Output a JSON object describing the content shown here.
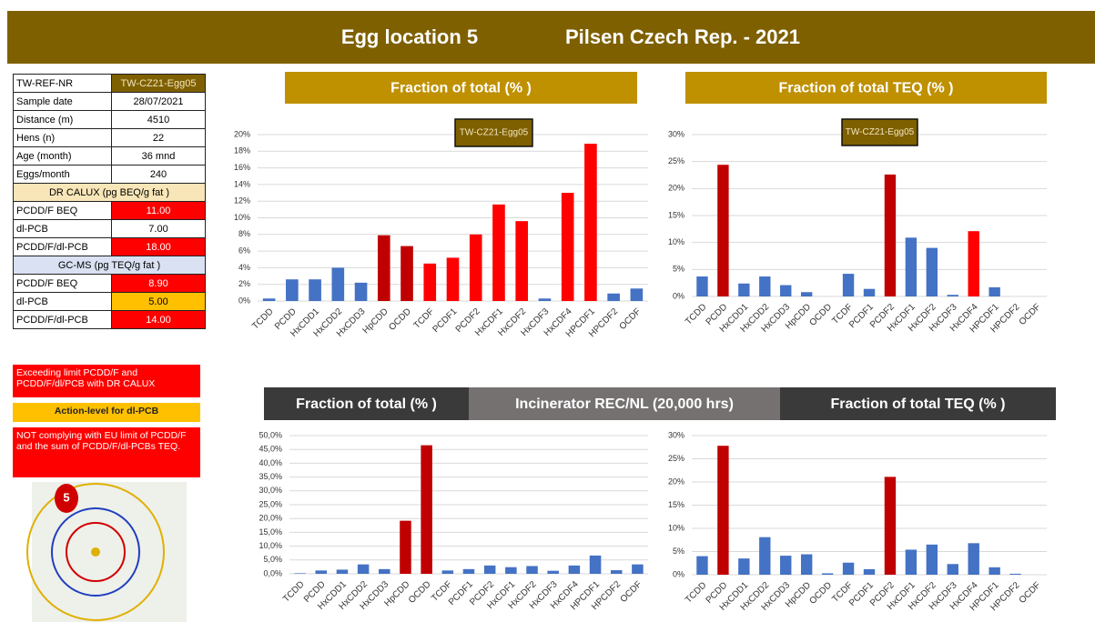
{
  "header": {
    "title": "Egg location 5",
    "subtitle": "Pilsen Czech Rep.  -  2021"
  },
  "table": {
    "rows": [
      [
        "TW-REF-NR",
        "TW-CZ21-Egg05"
      ],
      [
        "Sample date",
        "28/07/2021"
      ],
      [
        "Distance (m)",
        "4510"
      ],
      [
        "Hens (n)",
        "22"
      ],
      [
        "Age (month)",
        "36 mnd"
      ],
      [
        "Eggs/month",
        "240"
      ],
      [
        "DR CALUX  (pg BEQ/g fat )"
      ],
      [
        "PCDD/F BEQ",
        "11.00"
      ],
      [
        "dl-PCB",
        "7.00"
      ],
      [
        "PCDD/F/dl-PCB",
        "18.00"
      ],
      [
        "GC-MS  (pg TEQ/g fat )"
      ],
      [
        "PCDD/F BEQ",
        "8.90"
      ],
      [
        "dl-PCB",
        "5.00"
      ],
      [
        "PCDD/F/dl-PCB",
        "14.00"
      ]
    ]
  },
  "notes": [
    "Exceeding limit PCDD/F and PCDD/F/dl/PCB with DR CALUX",
    "Action-level for dl-PCB",
    "NOT complying with EU limit of PCDD/F and the sum of  PCDD/F/dl-PCBs TEQ."
  ],
  "map": {
    "label": "5"
  },
  "banner": "Incinerator REC/NL (20,000 hrs)",
  "chart_data": [
    {
      "type": "bar",
      "title": "Fraction of total (% )",
      "categories": [
        "TCDD",
        "PCDD",
        "HxCDD1",
        "HxCDD2",
        "HxCDD3",
        "HpCDD",
        "OCDD",
        "TCDF",
        "PCDF1",
        "PCDF2",
        "HxCDF1",
        "HxCDF2",
        "HxCDF3",
        "HxCDF4",
        "HPCDF1",
        "HPCDF2",
        "OCDF"
      ],
      "series": [
        {
          "name": "TW-CZ21-Egg05",
          "colors": [
            "#4472c4",
            "#4472c4",
            "#4472c4",
            "#4472c4",
            "#4472c4",
            "#c00000",
            "#c00000",
            "#ff0000",
            "#ff0000",
            "#ff0000",
            "#ff0000",
            "#ff0000",
            "#4472c4",
            "#ff0000",
            "#ff0000",
            "#4472c4",
            "#4472c4"
          ],
          "values": [
            0.3,
            2.6,
            2.6,
            4.0,
            2.2,
            7.9,
            6.6,
            4.5,
            5.2,
            8.0,
            11.6,
            9.6,
            0.3,
            13.0,
            18.9,
            0.9,
            1.5
          ]
        }
      ],
      "ylim": [
        0,
        20
      ],
      "yticks": [
        {
          "value": 0,
          "label": "0%"
        },
        {
          "value": 2,
          "label": "2%"
        },
        {
          "value": 4,
          "label": "4%"
        },
        {
          "value": 6,
          "label": "6%"
        },
        {
          "value": 8,
          "label": "8%"
        },
        {
          "value": 10,
          "label": "10%"
        },
        {
          "value": 12,
          "label": "12%"
        },
        {
          "value": 14,
          "label": "14%"
        },
        {
          "value": 16,
          "label": "16%"
        },
        {
          "value": 18,
          "label": "18%"
        },
        {
          "value": 20,
          "label": "20%"
        }
      ],
      "grid": true
    },
    {
      "type": "bar",
      "title": "Fraction of total TEQ (% )",
      "categories": [
        "TCDD",
        "PCDD",
        "HxCDD1",
        "HxCDD2",
        "HxCDD3",
        "HpCDD",
        "OCDD",
        "TCDF",
        "PCDF1",
        "PCDF2",
        "HxCDF1",
        "HxCDF2",
        "HxCDF3",
        "HxCDF4",
        "HPCDF1",
        "HPCDF2",
        "OCDF"
      ],
      "series": [
        {
          "name": "TW-CZ21-Egg05",
          "colors": [
            "#4472c4",
            "#c00000",
            "#4472c4",
            "#4472c4",
            "#4472c4",
            "#4472c4",
            "#4472c4",
            "#4472c4",
            "#4472c4",
            "#c00000",
            "#4472c4",
            "#4472c4",
            "#4472c4",
            "#ff0000",
            "#4472c4",
            "#4472c4",
            "#4472c4"
          ],
          "values": [
            3.7,
            24.4,
            2.4,
            3.7,
            2.1,
            0.8,
            0,
            4.2,
            1.4,
            22.6,
            10.9,
            9.0,
            0.3,
            12.1,
            1.7,
            0,
            0
          ]
        }
      ],
      "ylim": [
        0,
        30
      ],
      "yticks": [
        {
          "value": 0,
          "label": "0%"
        },
        {
          "value": 5,
          "label": "5%"
        },
        {
          "value": 10,
          "label": "10%"
        },
        {
          "value": 15,
          "label": "15%"
        },
        {
          "value": 20,
          "label": "20%"
        },
        {
          "value": 25,
          "label": "25%"
        },
        {
          "value": 30,
          "label": "30%"
        }
      ],
      "grid": true
    },
    {
      "type": "bar",
      "title": "Fraction of total (% )",
      "categories": [
        "TCDD",
        "PCDD",
        "HxCDD1",
        "HxCDD2",
        "HxCDD3",
        "HpCDD",
        "OCDD",
        "TCDF",
        "PCDF1",
        "PCDF2",
        "HxCDF1",
        "HxCDF2",
        "HxCDF3",
        "HxCDF4",
        "HPCDF1",
        "HPCDF2",
        "OCDF"
      ],
      "series": [
        {
          "colors": [
            "#4472c4",
            "#4472c4",
            "#4472c4",
            "#4472c4",
            "#4472c4",
            "#c00000",
            "#c00000",
            "#4472c4",
            "#4472c4",
            "#4472c4",
            "#4472c4",
            "#4472c4",
            "#4472c4",
            "#4472c4",
            "#4472c4",
            "#4472c4",
            "#4472c4"
          ],
          "values": [
            0.2,
            1.2,
            1.5,
            3.4,
            1.7,
            19.2,
            46.5,
            1.2,
            1.7,
            3.0,
            2.4,
            2.8,
            1.1,
            3.0,
            6.6,
            1.3,
            3.4
          ]
        }
      ],
      "ylim": [
        0,
        50
      ],
      "yticks": [
        {
          "value": 0,
          "label": "0,0%"
        },
        {
          "value": 5,
          "label": "5,0%"
        },
        {
          "value": 10,
          "label": "10,0%"
        },
        {
          "value": 15,
          "label": "15,0%"
        },
        {
          "value": 20,
          "label": "20,0%"
        },
        {
          "value": 25,
          "label": "25,0%"
        },
        {
          "value": 30,
          "label": "30,0%"
        },
        {
          "value": 35,
          "label": "35,0%"
        },
        {
          "value": 40,
          "label": "40,0%"
        },
        {
          "value": 45,
          "label": "45,0%"
        },
        {
          "value": 50,
          "label": "50,0%"
        }
      ],
      "grid": true
    },
    {
      "type": "bar",
      "title": "Fraction of total TEQ (% )",
      "categories": [
        "TCDD",
        "PCDD",
        "HxCDD1",
        "HxCDD2",
        "HxCDD3",
        "HpCDD",
        "OCDD",
        "TCDF",
        "PCDF1",
        "PCDF2",
        "HxCDF1",
        "HxCDF2",
        "HxCDF3",
        "HxCDF4",
        "HPCDF1",
        "HPCDF2",
        "OCDF"
      ],
      "series": [
        {
          "colors": [
            "#4472c4",
            "#c00000",
            "#4472c4",
            "#4472c4",
            "#4472c4",
            "#4472c4",
            "#4472c4",
            "#4472c4",
            "#4472c4",
            "#c00000",
            "#4472c4",
            "#4472c4",
            "#4472c4",
            "#4472c4",
            "#4472c4",
            "#4472c4",
            "#4472c4"
          ],
          "values": [
            4.0,
            27.8,
            3.5,
            8.1,
            4.1,
            4.4,
            0.3,
            2.6,
            1.2,
            21.1,
            5.4,
            6.5,
            2.3,
            6.8,
            1.6,
            0.2,
            0
          ]
        }
      ],
      "ylim": [
        0,
        30
      ],
      "yticks": [
        {
          "value": 0,
          "label": "0%"
        },
        {
          "value": 5,
          "label": "5%"
        },
        {
          "value": 10,
          "label": "10%"
        },
        {
          "value": 15,
          "label": "15%"
        },
        {
          "value": 20,
          "label": "20%"
        },
        {
          "value": 25,
          "label": "25%"
        },
        {
          "value": 30,
          "label": "30%"
        }
      ],
      "grid": true
    }
  ]
}
